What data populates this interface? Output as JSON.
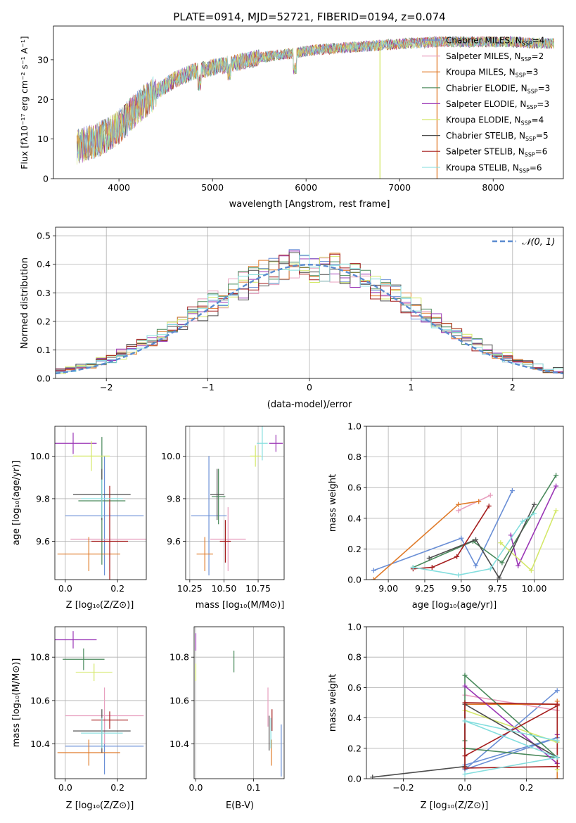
{
  "colors": [
    "#6a8fd6",
    "#e8a0bf",
    "#e07b2a",
    "#4a8a5c",
    "#9b37b6",
    "#d4e86a",
    "#4d4d4d",
    "#a51d1d",
    "#84dede"
  ],
  "panels": {
    "spectrum": {
      "title": "PLATE=0914, MJD=52721, FIBERID=0194, z=0.074",
      "xlabel": "wavelength [Angstrom, rest frame]",
      "ylabel": "Flux [fλ10⁻¹⁷ erg cm⁻² s⁻¹ A⁻¹]",
      "legend": [
        "Chabrier MILES, N_SSP=4",
        "Salpeter MILES, N_SSP=2",
        "Kroupa MILES, N_SSP=3",
        "Chabrier ELODIE, N_SSP=3",
        "Salpeter ELODIE, N_SSP=3",
        "Kroupa ELODIE, N_SSP=4",
        "Chabrier STELIB, N_SSP=5",
        "Salpeter STELIB, N_SSP=6",
        "Kroupa STELIB, N_SSP=6"
      ]
    },
    "residuals": {
      "xlabel": "(data-model)/error",
      "ylabel": "Normed distribution",
      "legend": "𝒩(0, 1)"
    },
    "z_age": {
      "xlabel": "Z [log₁₀(Z/Z⊙)]",
      "ylabel": "age  [log₁₀(age/yr)]"
    },
    "mass_age": {
      "xlabel": "mass [log₁₀(M/M⊙)]"
    },
    "age_weight": {
      "xlabel": "age  [log₁₀(age/yr)]",
      "ylabel": "mass weight"
    },
    "z_mass": {
      "xlabel": "Z [log₁₀(Z/Z⊙)]",
      "ylabel": "mass [log₁₀(M/M⊙)]"
    },
    "ebv_mass": {
      "xlabel": "E(B-V)"
    },
    "z_weight": {
      "xlabel": "Z [log₁₀(Z/Z⊙)]",
      "ylabel": "mass weight"
    }
  },
  "chart_data": [
    {
      "type": "line",
      "title": "PLATE=0914, MJD=52721, FIBERID=0194, z=0.074",
      "xlim": [
        3300,
        8750
      ],
      "ylim": [
        0,
        38.5
      ],
      "xticks": [
        4000,
        5000,
        6000,
        7000,
        8000
      ],
      "yticks": [
        0,
        10,
        20,
        30
      ],
      "continuum": {
        "x": [
          3550,
          3800,
          4000,
          4200,
          4400,
          4600,
          4800,
          5000,
          5200,
          5500,
          5800,
          6100,
          6400,
          6700,
          7000,
          7400,
          7800,
          8200,
          8650
        ],
        "y": [
          8,
          10,
          13,
          18,
          22,
          25,
          27,
          28,
          29,
          30.5,
          31.5,
          32.5,
          33,
          33.5,
          34,
          34.5,
          34.5,
          34.5,
          34
        ]
      },
      "dips": [
        {
          "x": 6790,
          "y": 0
        },
        {
          "x": 7400,
          "y": 0
        }
      ]
    },
    {
      "type": "step",
      "xlim": [
        -2.5,
        2.5
      ],
      "ylim": [
        0,
        0.53
      ],
      "xticks": [
        -2,
        -1,
        0,
        1,
        2
      ],
      "yticks": [
        0.0,
        0.1,
        0.2,
        0.3,
        0.4,
        0.5
      ],
      "bin_width": 0.1,
      "normal": {
        "mean": 0,
        "sd": 1
      }
    },
    {
      "type": "errorbar",
      "xlim": [
        -0.04,
        0.31
      ],
      "ylim": [
        9.42,
        10.14
      ],
      "xticks": [
        0.0,
        0.2
      ],
      "yticks": [
        9.6,
        9.8,
        10.0
      ],
      "points": [
        {
          "x": 0.15,
          "xerr": 0.15,
          "y": 9.72,
          "yerr": 0.28
        },
        {
          "x": 0.17,
          "xerr": 0.15,
          "y": 9.61,
          "yerr": 0.15
        },
        {
          "x": 0.09,
          "xerr": 0.12,
          "y": 9.54,
          "yerr": 0.08
        },
        {
          "x": 0.14,
          "xerr": 0.09,
          "y": 9.79,
          "yerr": 0.3
        },
        {
          "x": 0.03,
          "xerr": 0.09,
          "y": 10.06,
          "yerr": 0.05
        },
        {
          "x": 0.1,
          "xerr": 0.07,
          "y": 10.0,
          "yerr": 0.07
        },
        {
          "x": 0.14,
          "xerr": 0.11,
          "y": 9.82,
          "yerr": 0.12
        },
        {
          "x": 0.17,
          "xerr": 0.07,
          "y": 9.6,
          "yerr": 0.26
        },
        {
          "x": 0.14,
          "xerr": 0.08,
          "y": 9.8,
          "yerr": 0.09
        }
      ]
    },
    {
      "type": "errorbar",
      "xlim": [
        10.22,
        10.94
      ],
      "ylim": [
        9.42,
        10.14
      ],
      "xticks": [
        10.25,
        10.5,
        10.75
      ],
      "yticks": [
        9.6,
        9.8,
        10.0
      ],
      "points": [
        {
          "x": 10.39,
          "xerr": 0.13,
          "y": 9.72,
          "yerr": 0.28
        },
        {
          "x": 10.53,
          "xerr": 0.13,
          "y": 9.61,
          "yerr": 0.15
        },
        {
          "x": 10.36,
          "xerr": 0.06,
          "y": 9.54,
          "yerr": 0.08
        },
        {
          "x": 10.46,
          "xerr": 0.05,
          "y": 9.81,
          "yerr": 0.13
        },
        {
          "x": 10.88,
          "xerr": 0.05,
          "y": 10.06,
          "yerr": 0.04
        },
        {
          "x": 10.73,
          "xerr": 0.04,
          "y": 10.0,
          "yerr": 0.05
        },
        {
          "x": 10.45,
          "xerr": 0.05,
          "y": 9.82,
          "yerr": 0.12
        },
        {
          "x": 10.51,
          "xerr": 0.04,
          "y": 9.6,
          "yerr": 0.1
        },
        {
          "x": 10.78,
          "xerr": 0.04,
          "y": 10.06,
          "yerr": 0.08
        }
      ]
    },
    {
      "type": "line",
      "xlim": [
        8.85,
        10.2
      ],
      "ylim": [
        0,
        1.0
      ],
      "xticks": [
        9.0,
        9.25,
        9.5,
        9.75,
        10.0
      ],
      "yticks": [
        0.0,
        0.2,
        0.4,
        0.6,
        0.8,
        1.0
      ],
      "series": [
        {
          "x": [
            8.9,
            9.5,
            9.6,
            9.85
          ],
          "y": [
            0.06,
            0.27,
            0.09,
            0.58
          ]
        },
        {
          "x": [
            9.48,
            9.7
          ],
          "y": [
            0.45,
            0.55
          ]
        },
        {
          "x": [
            8.9,
            9.48,
            9.62
          ],
          "y": [
            0.0,
            0.49,
            0.51
          ]
        },
        {
          "x": [
            9.17,
            9.58,
            9.78,
            10.15
          ],
          "y": [
            0.08,
            0.25,
            0.11,
            0.68
          ]
        },
        {
          "x": [
            9.84,
            9.89,
            10.15
          ],
          "y": [
            0.29,
            0.09,
            0.61
          ]
        },
        {
          "x": [
            9.77,
            9.98,
            10.15
          ],
          "y": [
            0.24,
            0.06,
            0.45
          ]
        },
        {
          "x": [
            9.28,
            9.6,
            9.76,
            10.0
          ],
          "y": [
            0.14,
            0.26,
            0.01,
            0.49
          ]
        },
        {
          "x": [
            9.17,
            9.3,
            9.47,
            9.69
          ],
          "y": [
            0.07,
            0.08,
            0.15,
            0.48
          ]
        },
        {
          "x": [
            9.17,
            9.48,
            9.7,
            9.92,
            10.0
          ],
          "y": [
            0.08,
            0.03,
            0.07,
            0.38,
            0.43
          ]
        }
      ]
    },
    {
      "type": "errorbar",
      "xlim": [
        -0.04,
        0.31
      ],
      "ylim": [
        10.24,
        10.94
      ],
      "xticks": [
        0.0,
        0.2
      ],
      "yticks": [
        10.4,
        10.6,
        10.8
      ],
      "points": [
        {
          "x": 0.15,
          "xerr": 0.15,
          "y": 10.39,
          "yerr": 0.13
        },
        {
          "x": 0.15,
          "xerr": 0.15,
          "y": 10.53,
          "yerr": 0.13
        },
        {
          "x": 0.09,
          "xerr": 0.12,
          "y": 10.36,
          "yerr": 0.06
        },
        {
          "x": 0.07,
          "xerr": 0.08,
          "y": 10.79,
          "yerr": 0.05
        },
        {
          "x": 0.03,
          "xerr": 0.09,
          "y": 10.88,
          "yerr": 0.04
        },
        {
          "x": 0.11,
          "xerr": 0.07,
          "y": 10.73,
          "yerr": 0.04
        },
        {
          "x": 0.14,
          "xerr": 0.11,
          "y": 10.46,
          "yerr": 0.1
        },
        {
          "x": 0.17,
          "xerr": 0.07,
          "y": 10.51,
          "yerr": 0.04
        },
        {
          "x": 0.14,
          "xerr": 0.08,
          "y": 10.45,
          "yerr": 0.07
        }
      ]
    },
    {
      "type": "errorbar",
      "xlim": [
        -0.003,
        0.153
      ],
      "ylim": [
        10.24,
        10.94
      ],
      "xticks": [
        0.0,
        0.1
      ],
      "yticks": [
        10.4,
        10.6,
        10.8
      ],
      "points": [
        {
          "x": 0.148,
          "xerr": 0,
          "y": 10.37,
          "yerr": 0.12
        },
        {
          "x": 0.125,
          "xerr": 0,
          "y": 10.57,
          "yerr": 0.09
        },
        {
          "x": 0.131,
          "xerr": 0,
          "y": 10.36,
          "yerr": 0.06
        },
        {
          "x": 0.066,
          "xerr": 0,
          "y": 10.78,
          "yerr": 0.05
        },
        {
          "x": 0.0,
          "xerr": 0,
          "y": 10.87,
          "yerr": 0.04
        },
        {
          "x": 0.0,
          "xerr": 0,
          "y": 10.73,
          "yerr": 0.04
        },
        {
          "x": 0.127,
          "xerr": 0,
          "y": 10.45,
          "yerr": 0.08
        },
        {
          "x": 0.132,
          "xerr": 0,
          "y": 10.51,
          "yerr": 0.05
        },
        {
          "x": 0.13,
          "xerr": 0,
          "y": 10.45,
          "yerr": 0.07
        }
      ]
    },
    {
      "type": "line",
      "xlim": [
        -0.32,
        0.32
      ],
      "ylim": [
        0,
        1.0
      ],
      "xticks": [
        -0.2,
        0.0,
        0.2
      ],
      "yticks": [
        0.0,
        0.2,
        0.4,
        0.6,
        0.8,
        1.0
      ],
      "series": [
        {
          "x": [
            0.0,
            0.3,
            0.0,
            0.3
          ],
          "y": [
            0.09,
            0.27,
            0.06,
            0.58
          ]
        },
        {
          "x": [
            0.0,
            0.3,
            0.3
          ],
          "y": [
            0.55,
            0.45,
            0.49
          ]
        },
        {
          "x": [
            0.0,
            0.3,
            0.3,
            0.3
          ],
          "y": [
            0.49,
            0.49,
            0.0,
            0.51
          ]
        },
        {
          "x": [
            0.0,
            0.3,
            0.0,
            0.0
          ],
          "y": [
            0.2,
            0.14,
            0.68,
            0.25
          ]
        },
        {
          "x": [
            0.0,
            0.3,
            0.3
          ],
          "y": [
            0.61,
            0.1,
            0.29
          ]
        },
        {
          "x": [
            0.0,
            0.3,
            0.3
          ],
          "y": [
            0.45,
            0.24,
            0.06
          ]
        },
        {
          "x": [
            -0.3,
            0.0,
            0.0,
            0.3
          ],
          "y": [
            0.01,
            0.08,
            0.49,
            0.14
          ]
        },
        {
          "x": [
            0.0,
            0.3,
            0.3,
            0.0,
            0.0,
            0.3
          ],
          "y": [
            0.15,
            0.48,
            0.08,
            0.07,
            0.5,
            0.49
          ]
        },
        {
          "x": [
            0.0,
            0.3,
            0.0,
            0.3
          ],
          "y": [
            0.03,
            0.14,
            0.38,
            0.25
          ]
        }
      ]
    }
  ]
}
